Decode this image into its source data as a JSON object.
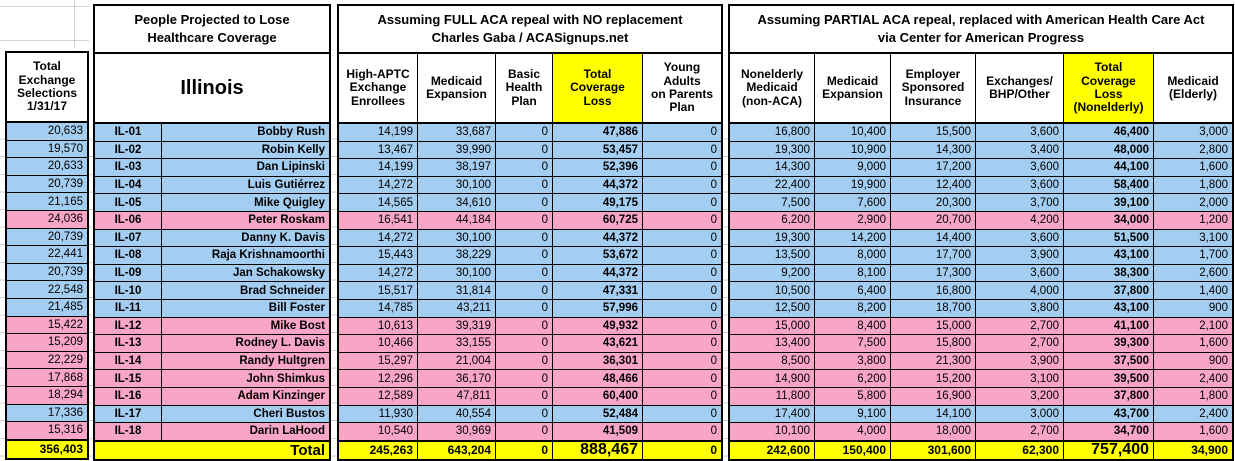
{
  "colors": {
    "democrat_row": "#A3CDF1",
    "republican_row": "#F8A5C6",
    "highlight_yellow": "#FFFF00",
    "border": "#000000",
    "gridline": "#D3D3D3"
  },
  "left_block": {
    "header_lines": [
      "Total",
      "Exchange",
      "Selections",
      "1/31/17"
    ],
    "total": "356,403"
  },
  "state_block": {
    "title_lines": [
      "People Projected to Lose",
      "Healthcare Coverage"
    ],
    "state": "Illinois",
    "total_label": "Total"
  },
  "full_repeal_block": {
    "title_lines": [
      "Assuming FULL ACA repeal with NO replacement",
      "Charles Gaba / ACASignups.net"
    ],
    "columns": [
      [
        "High-APTC",
        "Exchange",
        "Enrollees"
      ],
      [
        "Medicaid",
        "Expansion"
      ],
      [
        "Basic",
        "Health",
        "Plan"
      ],
      [
        "Total",
        "Coverage",
        "Loss"
      ],
      [
        "Young",
        "Adults",
        "on Parents",
        "Plan"
      ]
    ],
    "totals": [
      "245,263",
      "643,204",
      "0",
      "888,467",
      "0"
    ]
  },
  "partial_repeal_block": {
    "title_lines": [
      "Assuming PARTIAL ACA repeal, replaced with American Health Care Act",
      "via Center for American Progress"
    ],
    "columns": [
      [
        "Nonelderly",
        "Medicaid",
        "(non-ACA)"
      ],
      [
        "Medicaid",
        "Expansion"
      ],
      [
        "Employer",
        "Sponsored",
        "Insurance"
      ],
      [
        "Exchanges/",
        "BHP/Other"
      ],
      [
        "Total",
        "Coverage",
        "Loss",
        "(Nonelderly)"
      ],
      [
        "Medicaid",
        "(Elderly)"
      ]
    ],
    "totals": [
      "242,600",
      "150,400",
      "301,600",
      "62,300",
      "757,400",
      "34,900"
    ]
  },
  "rows": [
    {
      "party": "D",
      "exchange_selections": "20,633",
      "district": "IL-01",
      "representative": "Bobby Rush",
      "full_repeal": [
        "14,199",
        "33,687",
        "0",
        "47,886",
        "0"
      ],
      "partial_repeal": [
        "16,800",
        "10,400",
        "15,500",
        "3,600",
        "46,400",
        "3,000"
      ]
    },
    {
      "party": "D",
      "exchange_selections": "19,570",
      "district": "IL-02",
      "representative": "Robin Kelly",
      "full_repeal": [
        "13,467",
        "39,990",
        "0",
        "53,457",
        "0"
      ],
      "partial_repeal": [
        "19,300",
        "10,900",
        "14,300",
        "3,400",
        "48,000",
        "2,800"
      ]
    },
    {
      "party": "D",
      "exchange_selections": "20,633",
      "district": "IL-03",
      "representative": "Dan Lipinski",
      "full_repeal": [
        "14,199",
        "38,197",
        "0",
        "52,396",
        "0"
      ],
      "partial_repeal": [
        "14,300",
        "9,000",
        "17,200",
        "3,600",
        "44,100",
        "1,600"
      ]
    },
    {
      "party": "D",
      "exchange_selections": "20,739",
      "district": "IL-04",
      "representative": "Luis Gutiérrez",
      "full_repeal": [
        "14,272",
        "30,100",
        "0",
        "44,372",
        "0"
      ],
      "partial_repeal": [
        "22,400",
        "19,900",
        "12,400",
        "3,600",
        "58,400",
        "1,800"
      ]
    },
    {
      "party": "D",
      "exchange_selections": "21,165",
      "district": "IL-05",
      "representative": "Mike Quigley",
      "full_repeal": [
        "14,565",
        "34,610",
        "0",
        "49,175",
        "0"
      ],
      "partial_repeal": [
        "7,500",
        "7,600",
        "20,300",
        "3,700",
        "39,100",
        "2,000"
      ]
    },
    {
      "party": "R",
      "exchange_selections": "24,036",
      "district": "IL-06",
      "representative": "Peter Roskam",
      "full_repeal": [
        "16,541",
        "44,184",
        "0",
        "60,725",
        "0"
      ],
      "partial_repeal": [
        "6,200",
        "2,900",
        "20,700",
        "4,200",
        "34,000",
        "1,200"
      ]
    },
    {
      "party": "D",
      "exchange_selections": "20,739",
      "district": "IL-07",
      "representative": "Danny K. Davis",
      "full_repeal": [
        "14,272",
        "30,100",
        "0",
        "44,372",
        "0"
      ],
      "partial_repeal": [
        "19,300",
        "14,200",
        "14,400",
        "3,600",
        "51,500",
        "3,100"
      ]
    },
    {
      "party": "D",
      "exchange_selections": "22,441",
      "district": "IL-08",
      "representative": "Raja Krishnamoorthi",
      "full_repeal": [
        "15,443",
        "38,229",
        "0",
        "53,672",
        "0"
      ],
      "partial_repeal": [
        "13,500",
        "8,000",
        "17,700",
        "3,900",
        "43,100",
        "1,700"
      ]
    },
    {
      "party": "D",
      "exchange_selections": "20,739",
      "district": "IL-09",
      "representative": "Jan Schakowsky",
      "full_repeal": [
        "14,272",
        "30,100",
        "0",
        "44,372",
        "0"
      ],
      "partial_repeal": [
        "9,200",
        "8,100",
        "17,300",
        "3,600",
        "38,300",
        "2,600"
      ]
    },
    {
      "party": "D",
      "exchange_selections": "22,548",
      "district": "IL-10",
      "representative": "Brad Schneider",
      "full_repeal": [
        "15,517",
        "31,814",
        "0",
        "47,331",
        "0"
      ],
      "partial_repeal": [
        "10,500",
        "6,400",
        "16,800",
        "4,000",
        "37,800",
        "1,400"
      ]
    },
    {
      "party": "D",
      "exchange_selections": "21,485",
      "district": "IL-11",
      "representative": "Bill Foster",
      "full_repeal": [
        "14,785",
        "43,211",
        "0",
        "57,996",
        "0"
      ],
      "partial_repeal": [
        "12,500",
        "8,200",
        "18,700",
        "3,800",
        "43,100",
        "900"
      ]
    },
    {
      "party": "R",
      "exchange_selections": "15,422",
      "district": "IL-12",
      "representative": "Mike Bost",
      "full_repeal": [
        "10,613",
        "39,319",
        "0",
        "49,932",
        "0"
      ],
      "partial_repeal": [
        "15,000",
        "8,400",
        "15,000",
        "2,700",
        "41,100",
        "2,100"
      ]
    },
    {
      "party": "R",
      "exchange_selections": "15,209",
      "district": "IL-13",
      "representative": "Rodney L. Davis",
      "full_repeal": [
        "10,466",
        "33,155",
        "0",
        "43,621",
        "0"
      ],
      "partial_repeal": [
        "13,400",
        "7,500",
        "15,800",
        "2,700",
        "39,300",
        "1,600"
      ]
    },
    {
      "party": "R",
      "exchange_selections": "22,229",
      "district": "IL-14",
      "representative": "Randy Hultgren",
      "full_repeal": [
        "15,297",
        "21,004",
        "0",
        "36,301",
        "0"
      ],
      "partial_repeal": [
        "8,500",
        "3,800",
        "21,300",
        "3,900",
        "37,500",
        "900"
      ]
    },
    {
      "party": "R",
      "exchange_selections": "17,868",
      "district": "IL-15",
      "representative": "John Shimkus",
      "full_repeal": [
        "12,296",
        "36,170",
        "0",
        "48,466",
        "0"
      ],
      "partial_repeal": [
        "14,900",
        "6,200",
        "15,200",
        "3,100",
        "39,500",
        "2,400"
      ]
    },
    {
      "party": "R",
      "exchange_selections": "18,294",
      "district": "IL-16",
      "representative": "Adam Kinzinger",
      "full_repeal": [
        "12,589",
        "47,811",
        "0",
        "60,400",
        "0"
      ],
      "partial_repeal": [
        "11,800",
        "5,800",
        "16,900",
        "3,200",
        "37,800",
        "1,800"
      ]
    },
    {
      "party": "D",
      "exchange_selections": "17,336",
      "district": "IL-17",
      "representative": "Cheri Bustos",
      "full_repeal": [
        "11,930",
        "40,554",
        "0",
        "52,484",
        "0"
      ],
      "partial_repeal": [
        "17,400",
        "9,100",
        "14,100",
        "3,000",
        "43,700",
        "2,400"
      ]
    },
    {
      "party": "R",
      "exchange_selections": "15,316",
      "district": "IL-18",
      "representative": "Darin LaHood",
      "full_repeal": [
        "10,540",
        "30,969",
        "0",
        "41,509",
        "0"
      ],
      "partial_repeal": [
        "10,100",
        "4,000",
        "18,000",
        "2,700",
        "34,700",
        "1,600"
      ]
    }
  ]
}
